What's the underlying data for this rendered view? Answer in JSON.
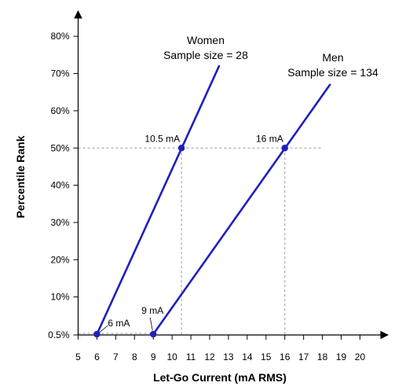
{
  "chart_data": {
    "type": "line",
    "title": "",
    "xlabel": "Let-Go Current (mA RMS)",
    "ylabel": "Percentile Rank",
    "xlim": [
      5,
      20
    ],
    "x_ticks": [
      "5",
      "6",
      "7",
      "8",
      "9",
      "10",
      "11",
      "12",
      "13",
      "14",
      "15",
      "16",
      "17",
      "18",
      "19",
      "20"
    ],
    "y_ticks": [
      {
        "value": 0.5,
        "label": "0.5%"
      },
      {
        "value": 10,
        "label": "10%"
      },
      {
        "value": 20,
        "label": "20%"
      },
      {
        "value": 30,
        "label": "30%"
      },
      {
        "value": 40,
        "label": "40%"
      },
      {
        "value": 50,
        "label": "50%"
      },
      {
        "value": 60,
        "label": "60%"
      },
      {
        "value": 70,
        "label": "70%"
      },
      {
        "value": 80,
        "label": "80%"
      }
    ],
    "series": [
      {
        "name": "Women",
        "subtitle": "Sample size = 28",
        "color": "#1f1fbf",
        "points": [
          {
            "x": 6,
            "y": 0.5
          },
          {
            "x": 10.5,
            "y": 50
          }
        ],
        "line_end": {
          "x": 12.5,
          "y": 72
        }
      },
      {
        "name": "Men",
        "subtitle": "Sample size = 134",
        "color": "#1f1fbf",
        "points": [
          {
            "x": 9,
            "y": 0.5
          },
          {
            "x": 16,
            "y": 50
          }
        ],
        "line_end": {
          "x": 18.4,
          "y": 67
        }
      }
    ],
    "annotations": [
      {
        "text": "10.5 mA",
        "x": 10.5,
        "y": 50
      },
      {
        "text": "16 mA",
        "x": 16,
        "y": 50
      },
      {
        "text": "6 mA",
        "x": 6,
        "y": 0.5
      },
      {
        "text": "9 mA",
        "x": 9,
        "y": 0.5
      }
    ],
    "reference_line_y": 50
  }
}
